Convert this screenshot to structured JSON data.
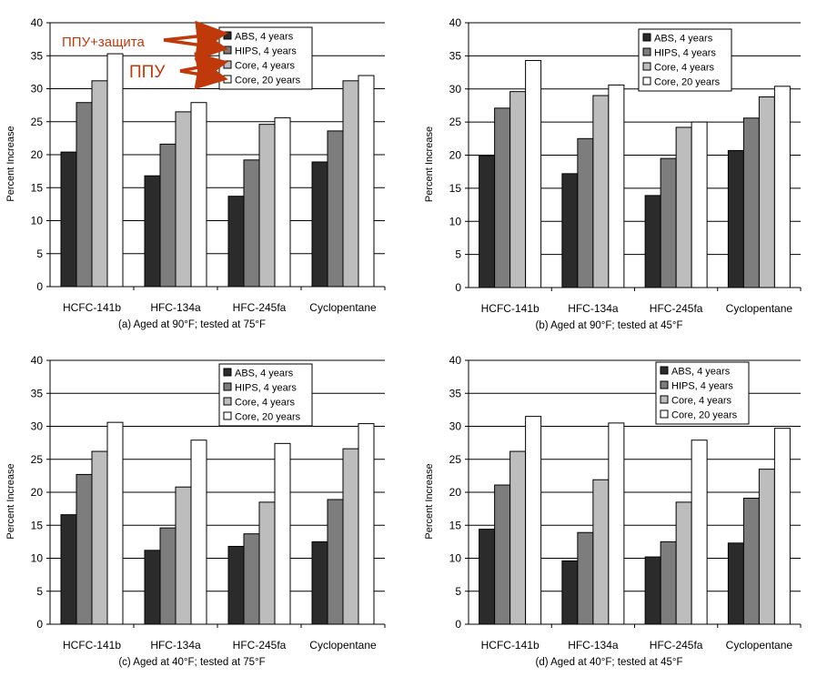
{
  "shared": {
    "ylabel": "Percent Increase",
    "ylim": [
      0,
      40
    ],
    "yticks": [
      0,
      5,
      10,
      15,
      20,
      25,
      30,
      35,
      40
    ],
    "categories": [
      "HCFC-141b",
      "HFC-134a",
      "HFC-245fa",
      "Cyclopentane"
    ],
    "legend": [
      "ABS, 4 years",
      "HIPS, 4 years",
      "Core, 4 years",
      "Core, 20 years"
    ],
    "colors": [
      "#2b2b2b",
      "#7d7d7d",
      "#bdbdbd",
      "#ffffff"
    ]
  },
  "annotations": {
    "label_1": "ППУ+защита",
    "label_2": "ППУ",
    "color": "#c0390b"
  },
  "chart_data": [
    {
      "type": "bar",
      "title": "(a) Aged at 90°F; tested at 75°F",
      "xlabel": "",
      "ylabel": "Percent Increase",
      "ylim": [
        0,
        40
      ],
      "grid": true,
      "legend_position": "top-right",
      "categories": [
        "HCFC-141b",
        "HFC-134a",
        "HFC-245fa",
        "Cyclopentane"
      ],
      "series": [
        {
          "name": "ABS, 4 years",
          "values": [
            20.4,
            16.8,
            13.7,
            18.9
          ]
        },
        {
          "name": "HIPS, 4 years",
          "values": [
            27.9,
            21.6,
            19.2,
            23.6
          ]
        },
        {
          "name": "Core, 4 years",
          "values": [
            31.2,
            26.5,
            24.6,
            31.2
          ]
        },
        {
          "name": "Core, 20 years",
          "values": [
            35.3,
            27.9,
            25.6,
            32.0
          ]
        }
      ]
    },
    {
      "type": "bar",
      "title": "(b) Aged at 90°F; tested at 45°F",
      "xlabel": "",
      "ylabel": "Percent Increase",
      "ylim": [
        0,
        40
      ],
      "grid": true,
      "legend_position": "top-right",
      "categories": [
        "HCFC-141b",
        "HFC-134a",
        "HFC-245fa",
        "Cyclopentane"
      ],
      "series": [
        {
          "name": "ABS, 4 years",
          "values": [
            19.9,
            17.2,
            13.9,
            20.7
          ]
        },
        {
          "name": "HIPS, 4 years",
          "values": [
            27.1,
            22.5,
            19.5,
            25.6
          ]
        },
        {
          "name": "Core, 4 years",
          "values": [
            29.6,
            29.0,
            24.2,
            28.8
          ]
        },
        {
          "name": "Core, 20 years",
          "values": [
            34.3,
            30.6,
            25.0,
            30.4
          ]
        }
      ]
    },
    {
      "type": "bar",
      "title": "(c) Aged at 40°F; tested at 75°F",
      "xlabel": "",
      "ylabel": "Percent Increase",
      "ylim": [
        0,
        40
      ],
      "grid": true,
      "legend_position": "top-right",
      "categories": [
        "HCFC-141b",
        "HFC-134a",
        "HFC-245fa",
        "Cyclopentane"
      ],
      "series": [
        {
          "name": "ABS, 4 years",
          "values": [
            16.6,
            11.2,
            11.8,
            12.5
          ]
        },
        {
          "name": "HIPS, 4 years",
          "values": [
            22.7,
            14.6,
            13.7,
            18.9
          ]
        },
        {
          "name": "Core, 4 years",
          "values": [
            26.2,
            20.8,
            18.5,
            26.6
          ]
        },
        {
          "name": "Core, 20 years",
          "values": [
            30.6,
            27.9,
            27.4,
            30.4
          ]
        }
      ]
    },
    {
      "type": "bar",
      "title": "(d) Aged at 40°F; tested at 45°F",
      "xlabel": "",
      "ylabel": "Percent Increase",
      "ylim": [
        0,
        40
      ],
      "grid": true,
      "legend_position": "top-right",
      "categories": [
        "HCFC-141b",
        "HFC-134a",
        "HFC-245fa",
        "Cyclopentane"
      ],
      "series": [
        {
          "name": "ABS, 4 years",
          "values": [
            14.4,
            9.6,
            10.2,
            12.3
          ]
        },
        {
          "name": "HIPS, 4 years",
          "values": [
            21.1,
            13.9,
            12.5,
            19.1
          ]
        },
        {
          "name": "Core, 4 years",
          "values": [
            26.2,
            21.9,
            18.5,
            23.5
          ]
        },
        {
          "name": "Core, 20 years",
          "values": [
            31.5,
            30.5,
            27.9,
            29.7
          ]
        }
      ]
    }
  ]
}
